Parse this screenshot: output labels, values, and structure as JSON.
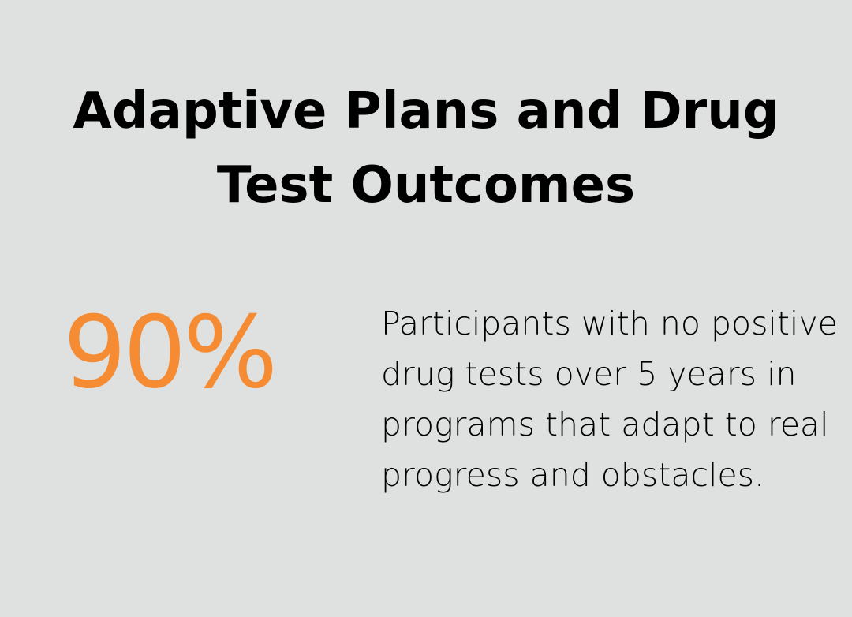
{
  "title": "Adaptive Plans and Drug Test Outcomes",
  "stat": {
    "value": "90%",
    "color": "#f58b33"
  },
  "description": "Participants with no positive drug tests over 5 years in programs that adapt to real progress and obstacles.",
  "colors": {
    "background": "#dfe1e0",
    "text": "#000000",
    "accent": "#f58b33"
  }
}
